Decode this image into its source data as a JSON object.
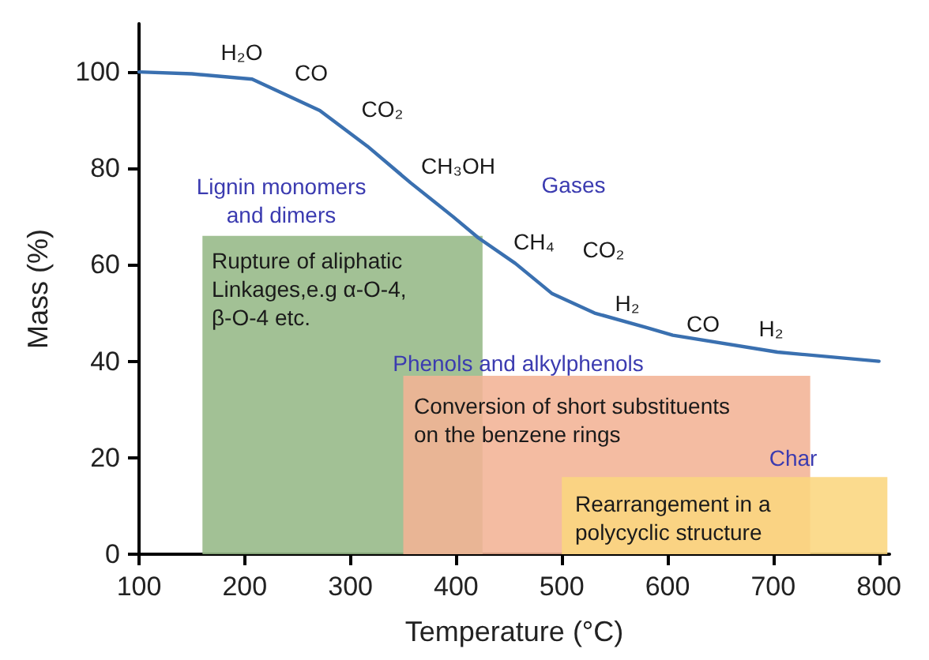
{
  "chart_data": {
    "type": "line",
    "xlabel": "Temperature (°C)",
    "ylabel": "Mass (%)",
    "xlim": [
      100,
      810
    ],
    "xticks": [
      100,
      200,
      300,
      400,
      500,
      600,
      700,
      800
    ],
    "ylim": [
      0,
      110
    ],
    "yticks": [
      0,
      20,
      40,
      60,
      80,
      100
    ],
    "grid": false,
    "marker": "none",
    "line_style": "solid",
    "series": [
      {
        "type": "area",
        "color": "#95b886",
        "x": [
          160,
          425
        ],
        "values": [
          66,
          66
        ]
      },
      {
        "type": "area",
        "color": "#f3b395",
        "x": [
          350,
          735
        ],
        "values": [
          37,
          37
        ]
      },
      {
        "type": "area",
        "color": "#fbd67e",
        "x": [
          500,
          808
        ],
        "values": [
          16,
          16
        ]
      },
      {
        "color": "#3a70b0",
        "x": [
          100,
          150,
          207,
          271,
          316,
          357,
          397,
          421,
          456,
          491,
          531,
          580,
          605,
          704,
          800
        ],
        "values": [
          100,
          99.6,
          98.5,
          92,
          84.6,
          77,
          70,
          65.6,
          60.3,
          54,
          50,
          47,
          45.4,
          41.9,
          40
        ]
      }
    ],
    "annotations": [
      "H₂O",
      "CO",
      "CO₂",
      "CH₃OH",
      "Gases",
      "Lignin monomers\nand dimers",
      "CH₄",
      "CO₂",
      "H₂",
      "CO",
      "H₂",
      "Rupture of aliphatic\nLinkages,e.g α-O-4,\nβ-O-4 etc.",
      "Phenols and alkylphenols",
      "Conversion of short substituents\non the benzene rings",
      "Char",
      "Rearrangement in a\npolycyclic structure"
    ]
  }
}
